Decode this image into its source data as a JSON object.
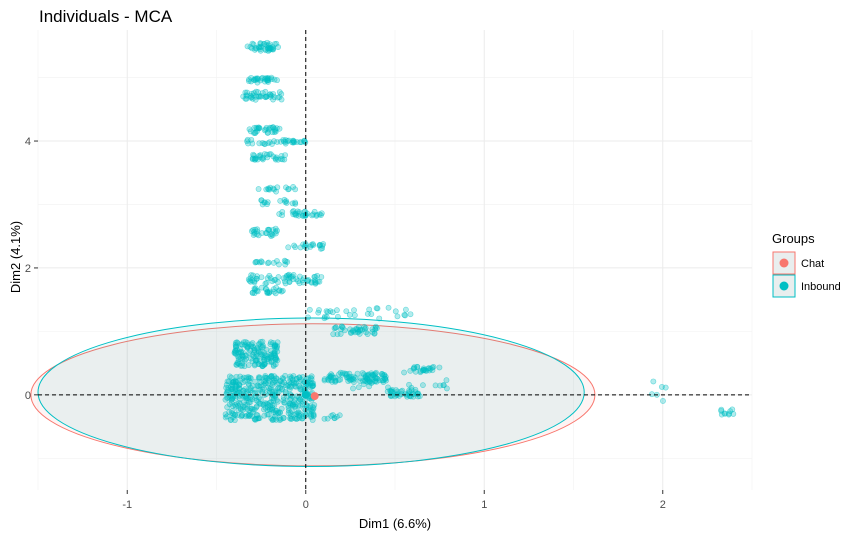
{
  "chart_data": {
    "type": "scatter",
    "title": "Individuals - MCA",
    "xlabel": "Dim1 (6.6%)",
    "ylabel": "Dim2 (4.1%)",
    "xlim": [
      -1.5,
      2.5
    ],
    "ylim": [
      -1.5,
      5.75
    ],
    "x_ticks": [
      -1,
      0,
      1,
      2
    ],
    "y_ticks": [
      0,
      2,
      4
    ],
    "x_tick_labels": [
      "-1",
      "0",
      "1",
      "2"
    ],
    "y_tick_labels": [
      "0",
      "2",
      "4"
    ],
    "grid": true,
    "reference_lines": {
      "x": 0,
      "y": 0,
      "style": "dashed"
    },
    "legend": {
      "title": "Groups",
      "position": "right"
    },
    "series": [
      {
        "name": "Chat",
        "color": "#F8766D",
        "centroid": [
          0.05,
          -0.02
        ],
        "ellipse": {
          "center": [
            0.04,
            0.0
          ],
          "rx": 1.58,
          "ry": 1.12
        },
        "points": [
          [
            0.05,
            -0.02
          ]
        ]
      },
      {
        "name": "Inbound",
        "color": "#00BFC4",
        "centroid": [
          0.0,
          0.0
        ],
        "ellipse": {
          "center": [
            0.03,
            0.04
          ],
          "rx": 1.53,
          "ry": 1.17
        },
        "clusters": [
          {
            "x": [
              -0.33,
              -0.15
            ],
            "y": [
              5.42,
              5.55
            ],
            "n": 40
          },
          {
            "x": [
              -0.32,
              -0.16
            ],
            "y": [
              4.92,
              5.0
            ],
            "n": 30
          },
          {
            "x": [
              -0.36,
              -0.13
            ],
            "y": [
              4.65,
              4.78
            ],
            "n": 40
          },
          {
            "x": [
              -0.32,
              -0.13
            ],
            "y": [
              4.12,
              4.22
            ],
            "n": 30
          },
          {
            "x": [
              -0.34,
              0.0
            ],
            "y": [
              3.95,
              4.02
            ],
            "n": 35
          },
          {
            "x": [
              -0.3,
              -0.1
            ],
            "y": [
              3.7,
              3.8
            ],
            "n": 30
          },
          {
            "x": [
              -0.3,
              -0.05
            ],
            "y": [
              3.2,
              3.28
            ],
            "n": 15
          },
          {
            "x": [
              -0.28,
              -0.05
            ],
            "y": [
              3.0,
              3.08
            ],
            "n": 15
          },
          {
            "x": [
              -0.15,
              0.1
            ],
            "y": [
              2.82,
              2.9
            ],
            "n": 30
          },
          {
            "x": [
              -0.32,
              -0.15
            ],
            "y": [
              2.5,
              2.62
            ],
            "n": 25
          },
          {
            "x": [
              -0.1,
              0.1
            ],
            "y": [
              2.3,
              2.38
            ],
            "n": 20
          },
          {
            "x": [
              -0.3,
              -0.1
            ],
            "y": [
              2.05,
              2.12
            ],
            "n": 15
          },
          {
            "x": [
              -0.32,
              0.1
            ],
            "y": [
              1.75,
              1.9
            ],
            "n": 60
          },
          {
            "x": [
              -0.3,
              -0.12
            ],
            "y": [
              1.6,
              1.7
            ],
            "n": 25
          },
          {
            "x": [
              0.0,
              0.6
            ],
            "y": [
              1.2,
              1.38
            ],
            "n": 30
          },
          {
            "x": [
              0.15,
              0.4
            ],
            "y": [
              0.95,
              1.08
            ],
            "n": 40
          },
          {
            "x": [
              -0.4,
              -0.15
            ],
            "y": [
              0.45,
              0.85
            ],
            "n": 150
          },
          {
            "x": [
              0.1,
              0.45
            ],
            "y": [
              0.2,
              0.35
            ],
            "n": 90
          },
          {
            "x": [
              0.55,
              0.75
            ],
            "y": [
              0.35,
              0.45
            ],
            "n": 25
          },
          {
            "x": [
              0.2,
              0.8
            ],
            "y": [
              0.1,
              0.25
            ],
            "n": 20
          },
          {
            "x": [
              0.45,
              0.65
            ],
            "y": [
              -0.03,
              0.08
            ],
            "n": 40
          },
          {
            "x": [
              -0.45,
              0.05
            ],
            "y": [
              -0.4,
              0.3
            ],
            "n": 420
          },
          {
            "x": [
              -0.2,
              0.2
            ],
            "y": [
              -0.4,
              -0.2
            ],
            "n": 15
          },
          {
            "x": [
              1.9,
              2.02
            ],
            "y": [
              -0.12,
              0.3
            ],
            "n": 6
          },
          {
            "x": [
              2.32,
              2.4
            ],
            "y": [
              -0.32,
              -0.22
            ],
            "n": 10
          }
        ]
      }
    ]
  }
}
